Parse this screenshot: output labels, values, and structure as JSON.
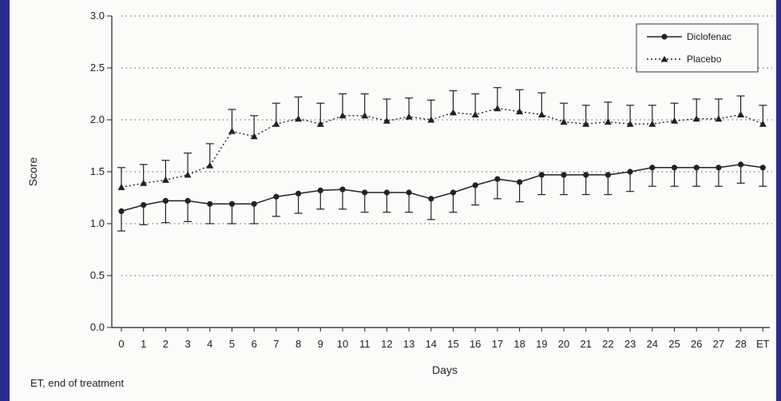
{
  "chart_data": {
    "type": "line",
    "title": "",
    "xlabel": "Days",
    "ylabel": "Score",
    "ylim": [
      0.0,
      3.0
    ],
    "yticks": [
      "0.0",
      "0.5",
      "1.0",
      "1.5",
      "2.0",
      "2.5",
      "3.0"
    ],
    "categories": [
      "0",
      "1",
      "2",
      "3",
      "4",
      "5",
      "6",
      "7",
      "8",
      "9",
      "10",
      "11",
      "12",
      "13",
      "14",
      "15",
      "16",
      "17",
      "18",
      "19",
      "20",
      "21",
      "22",
      "23",
      "24",
      "25",
      "26",
      "27",
      "28",
      "ET"
    ],
    "grid": "dotted horizontal",
    "legend_position": "top-right",
    "series": [
      {
        "name": "Diclofenac",
        "style": "solid line, circle markers, error bars below",
        "values": [
          1.12,
          1.18,
          1.22,
          1.22,
          1.19,
          1.19,
          1.19,
          1.26,
          1.29,
          1.32,
          1.33,
          1.3,
          1.3,
          1.3,
          1.24,
          1.3,
          1.37,
          1.43,
          1.4,
          1.47,
          1.47,
          1.47,
          1.47,
          1.5,
          1.54,
          1.54,
          1.54,
          1.54,
          1.57,
          1.54
        ],
        "error_low": [
          0.93,
          0.99,
          1.01,
          1.02,
          1.0,
          1.0,
          1.0,
          1.07,
          1.1,
          1.14,
          1.14,
          1.11,
          1.11,
          1.11,
          1.04,
          1.11,
          1.18,
          1.24,
          1.21,
          1.28,
          1.28,
          1.28,
          1.28,
          1.31,
          1.36,
          1.36,
          1.36,
          1.36,
          1.39,
          1.36
        ]
      },
      {
        "name": "Placebo",
        "style": "dotted line, triangle markers, error bars above",
        "values": [
          1.35,
          1.39,
          1.42,
          1.47,
          1.56,
          1.89,
          1.84,
          1.96,
          2.01,
          1.96,
          2.04,
          2.04,
          1.99,
          2.03,
          2.0,
          2.07,
          2.05,
          2.11,
          2.08,
          2.05,
          1.98,
          1.96,
          1.98,
          1.96,
          1.96,
          1.99,
          2.01,
          2.01,
          2.05,
          1.96
        ],
        "error_high": [
          1.54,
          1.57,
          1.61,
          1.68,
          1.77,
          2.1,
          2.04,
          2.16,
          2.22,
          2.16,
          2.25,
          2.25,
          2.2,
          2.21,
          2.19,
          2.28,
          2.25,
          2.31,
          2.29,
          2.26,
          2.16,
          2.14,
          2.17,
          2.14,
          2.14,
          2.16,
          2.2,
          2.2,
          2.23,
          2.14
        ]
      }
    ]
  },
  "footnote": "ET, end of treatment",
  "colors": {
    "background": "#2b2d8e",
    "paper": "#fbfbf9",
    "ink": "#222222"
  }
}
